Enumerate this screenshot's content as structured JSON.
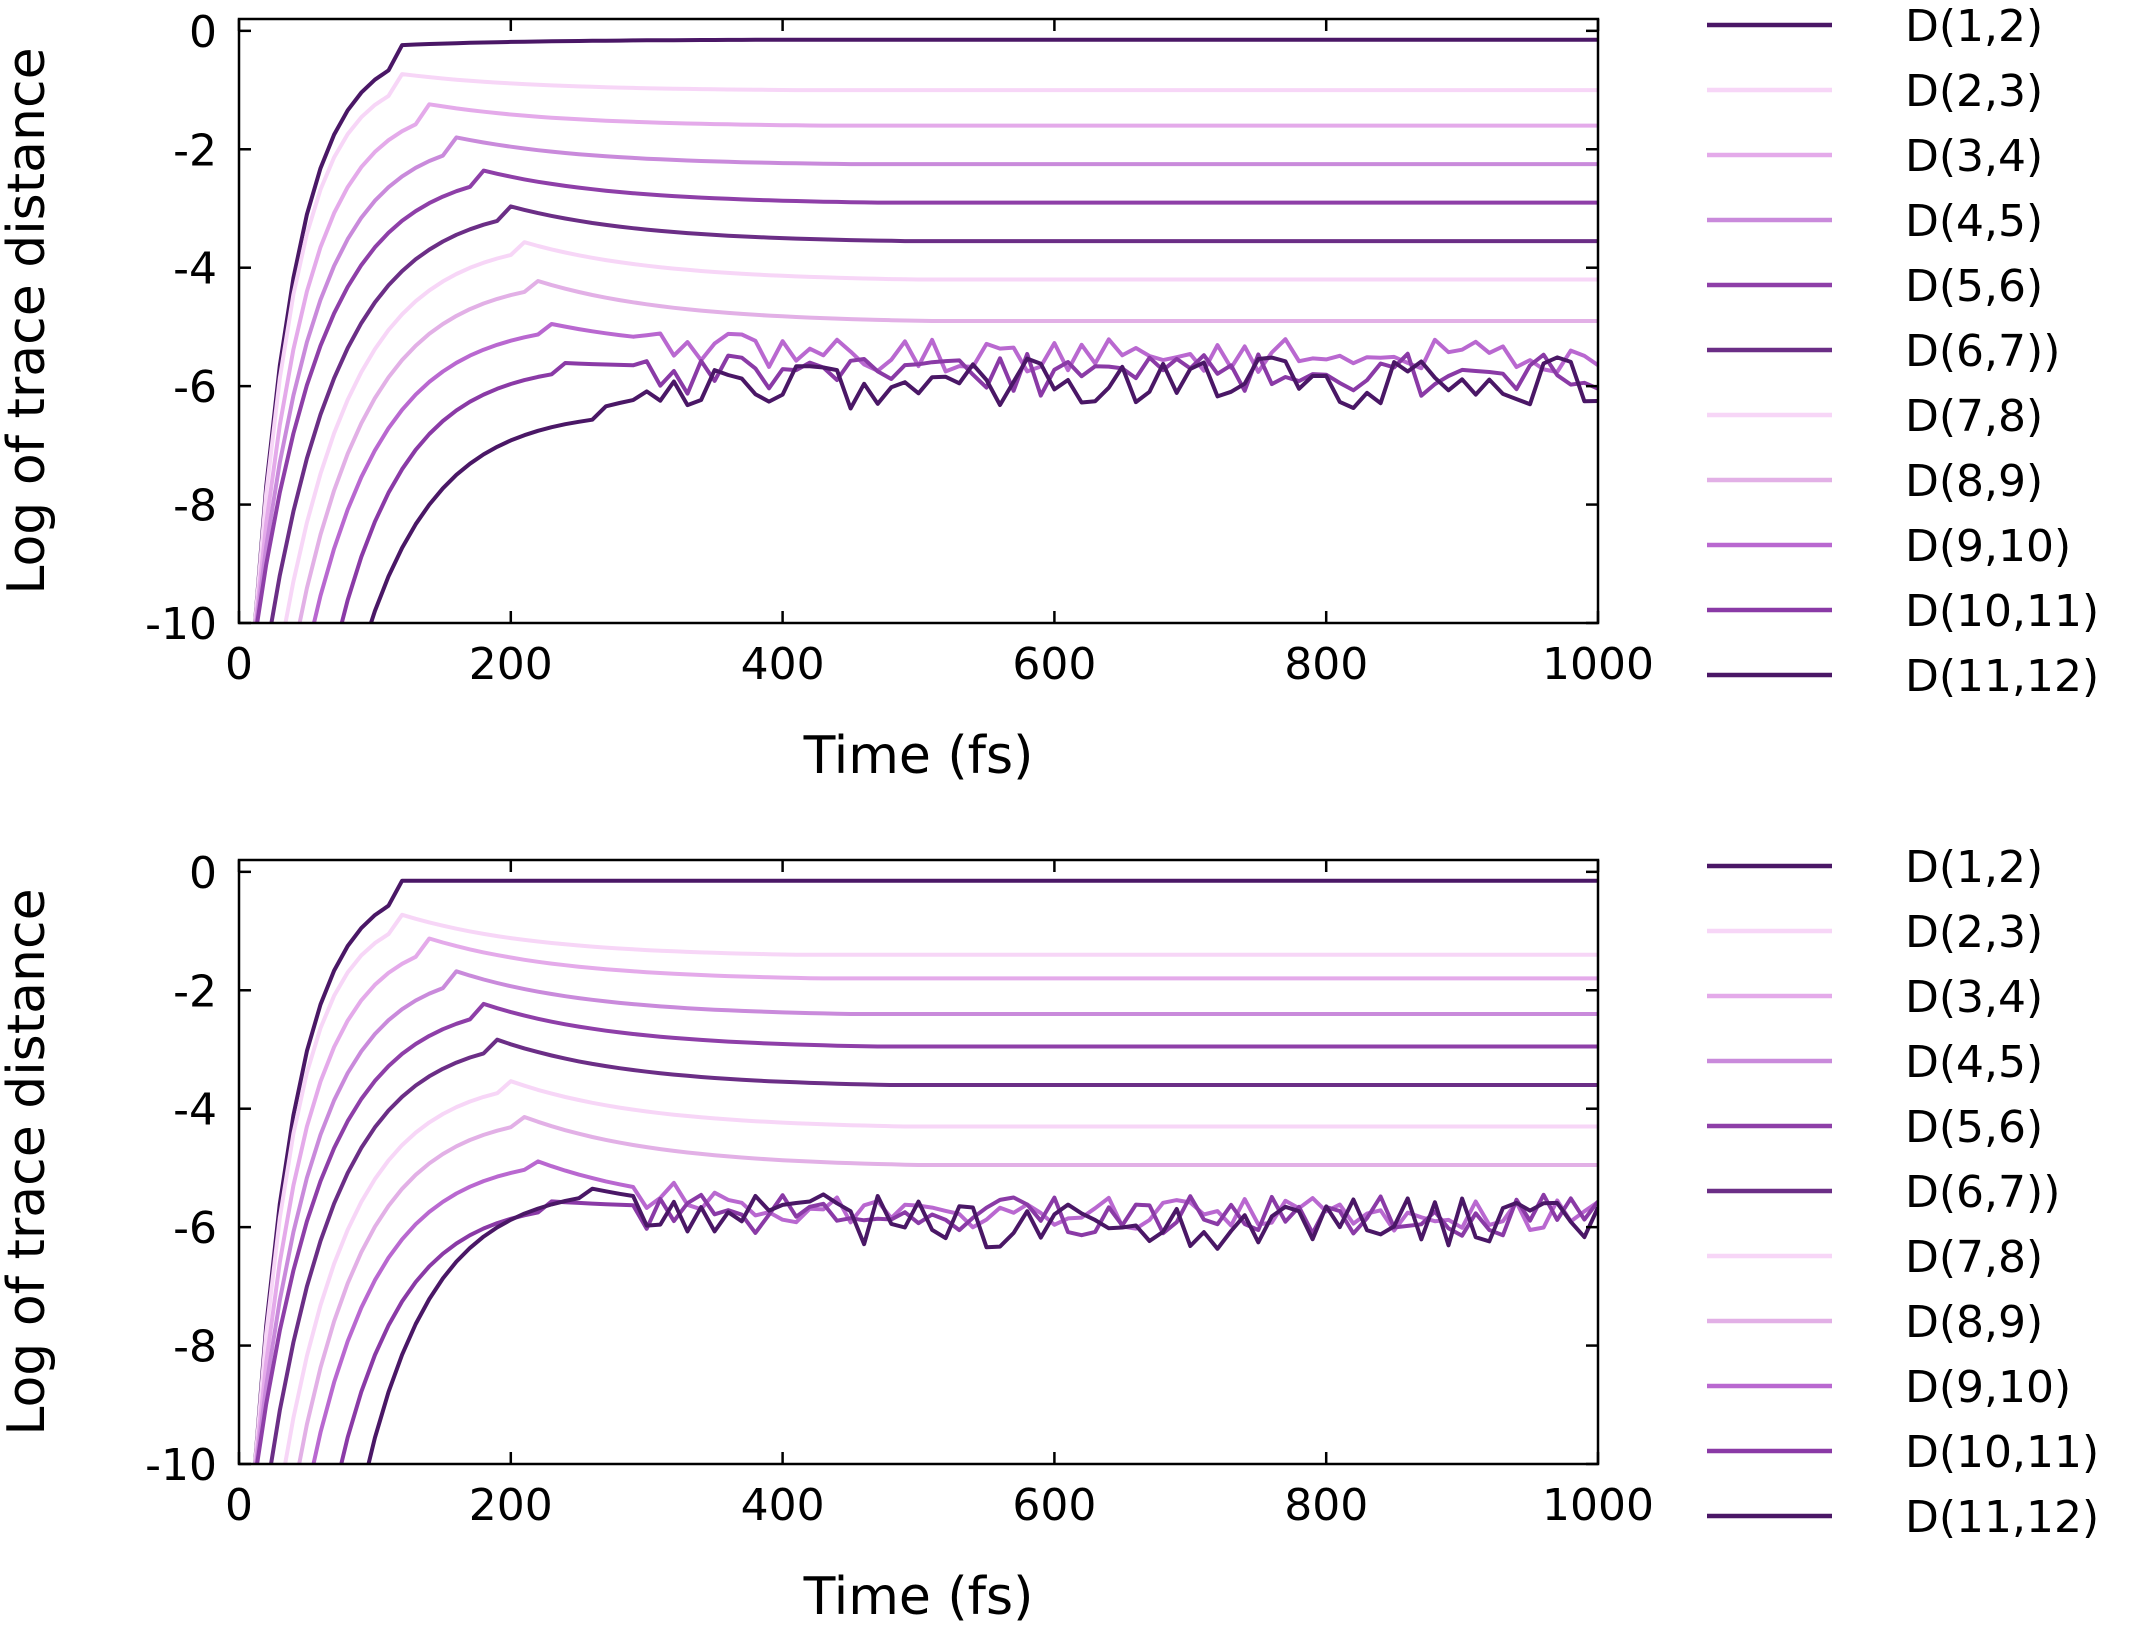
{
  "colors": {
    "D(1,2)": "#4a1766",
    "D(2,3)": "#f7d6f7",
    "D(3,4)": "#e4aaea",
    "D(4,5)": "#c98adb",
    "D(5,6)": "#8e3fa8",
    "D(6,7))": "#6b2e86",
    "D(7,8)": "#f7d6f7",
    "D(8,9)": "#e2b0e6",
    "D(9,10)": "#b968d0",
    "D(10,11)": "#8a3aa6",
    "D(11,12)": "#4a1766"
  },
  "chart_data": [
    {
      "type": "line",
      "title": "",
      "xlabel": "Time (fs)",
      "ylabel": "Log of trace distance",
      "xlim": [
        0,
        1000
      ],
      "ylim": [
        -10,
        0.2
      ],
      "xticks": [
        "0",
        "200",
        "400",
        "600",
        "800",
        "1000"
      ],
      "yticks": [
        "0",
        "-2",
        "-4",
        "-6",
        "-8",
        "-10"
      ],
      "legend_position": "right",
      "series": [
        {
          "name": "D(1,2)",
          "start": 10,
          "plateau_t": 110,
          "plateau": -0.25,
          "final": -0.15,
          "fluct": false
        },
        {
          "name": "D(2,3)",
          "start": 10,
          "plateau_t": 110,
          "plateau": -0.7,
          "final": -1.0,
          "fluct": false
        },
        {
          "name": "D(3,4)",
          "start": 10,
          "plateau_t": 130,
          "plateau": -1.2,
          "final": -1.6,
          "fluct": false
        },
        {
          "name": "D(4,5)",
          "start": 10,
          "plateau_t": 150,
          "plateau": -1.75,
          "final": -2.25,
          "fluct": false
        },
        {
          "name": "D(5,6)",
          "start": 10,
          "plateau_t": 170,
          "plateau": -2.3,
          "final": -2.9,
          "fluct": false
        },
        {
          "name": "D(6,7))",
          "start": 20,
          "plateau_t": 190,
          "plateau": -2.9,
          "final": -3.55,
          "fluct": false
        },
        {
          "name": "D(7,8)",
          "start": 30,
          "plateau_t": 200,
          "plateau": -3.5,
          "final": -4.2,
          "fluct": false
        },
        {
          "name": "D(8,9)",
          "start": 40,
          "plateau_t": 210,
          "plateau": -4.15,
          "final": -4.9,
          "fluct": false
        },
        {
          "name": "D(9,10)",
          "start": 50,
          "plateau_t": 220,
          "plateau": -4.9,
          "final": -5.4,
          "fluct": true
        },
        {
          "name": "D(10,11)",
          "start": 70,
          "plateau_t": 230,
          "plateau": -5.6,
          "final": -5.7,
          "fluct": true
        },
        {
          "name": "D(11,12)",
          "start": 90,
          "plateau_t": 260,
          "plateau": -6.4,
          "final": -5.8,
          "fluct": true
        }
      ]
    },
    {
      "type": "line",
      "title": "",
      "xlabel": "Time (fs)",
      "ylabel": "Log of trace distance",
      "xlim": [
        0,
        1000
      ],
      "ylim": [
        -10,
        0.2
      ],
      "xticks": [
        "0",
        "200",
        "400",
        "600",
        "800",
        "1000"
      ],
      "yticks": [
        "0",
        "-2",
        "-4",
        "-6",
        "-8",
        "-10"
      ],
      "legend_position": "right",
      "series": [
        {
          "name": "D(1,2)",
          "start": 10,
          "plateau_t": 110,
          "plateau": -0.15,
          "final": -0.15,
          "fluct": false
        },
        {
          "name": "D(2,3)",
          "start": 10,
          "plateau_t": 110,
          "plateau": -0.65,
          "final": -1.4,
          "fluct": false
        },
        {
          "name": "D(3,4)",
          "start": 10,
          "plateau_t": 130,
          "plateau": -1.05,
          "final": -1.8,
          "fluct": false
        },
        {
          "name": "D(4,5)",
          "start": 10,
          "plateau_t": 150,
          "plateau": -1.6,
          "final": -2.4,
          "fluct": false
        },
        {
          "name": "D(5,6)",
          "start": 10,
          "plateau_t": 170,
          "plateau": -2.15,
          "final": -2.95,
          "fluct": false
        },
        {
          "name": "D(6,7))",
          "start": 20,
          "plateau_t": 180,
          "plateau": -2.75,
          "final": -3.6,
          "fluct": false
        },
        {
          "name": "D(7,8)",
          "start": 30,
          "plateau_t": 190,
          "plateau": -3.45,
          "final": -4.3,
          "fluct": false
        },
        {
          "name": "D(8,9)",
          "start": 40,
          "plateau_t": 200,
          "plateau": -4.05,
          "final": -4.95,
          "fluct": false
        },
        {
          "name": "D(9,10)",
          "start": 50,
          "plateau_t": 210,
          "plateau": -4.8,
          "final": -5.7,
          "fluct": true
        },
        {
          "name": "D(10,11)",
          "start": 70,
          "plateau_t": 220,
          "plateau": -5.55,
          "final": -5.7,
          "fluct": true
        },
        {
          "name": "D(11,12)",
          "start": 90,
          "plateau_t": 250,
          "plateau": -5.3,
          "final": -5.8,
          "fluct": true
        }
      ]
    }
  ]
}
